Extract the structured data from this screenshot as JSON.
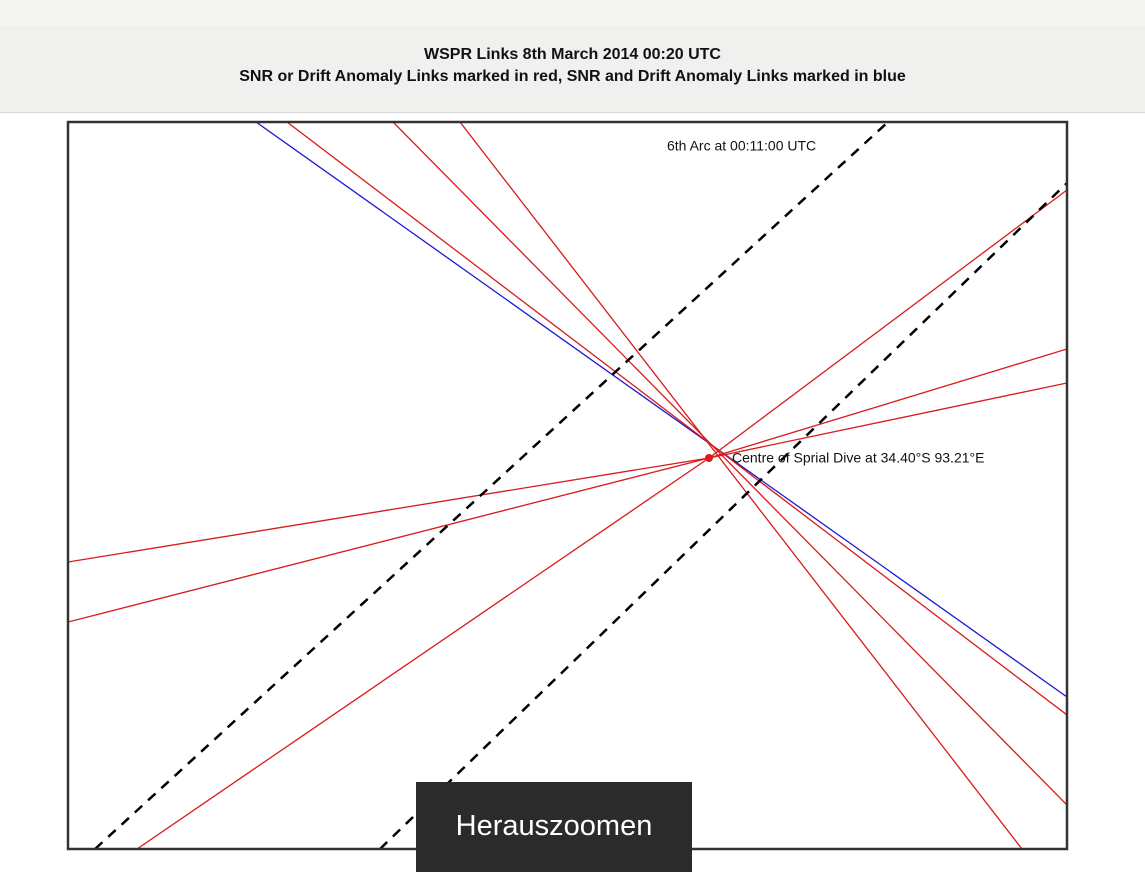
{
  "header": {
    "title": "WSPR Links 8th March 2014 00:20 UTC",
    "subtitle": "SNR or Drift Anomaly Links marked in red, SNR and Drift Anomaly Links marked in blue"
  },
  "diagram": {
    "arc_label": "6th Arc at 00:11:00 UTC",
    "centre_label": "Centre of Sprial Dive at 34.40°S 93.21°E"
  },
  "overlay": {
    "button": "Herauszoomen"
  }
}
